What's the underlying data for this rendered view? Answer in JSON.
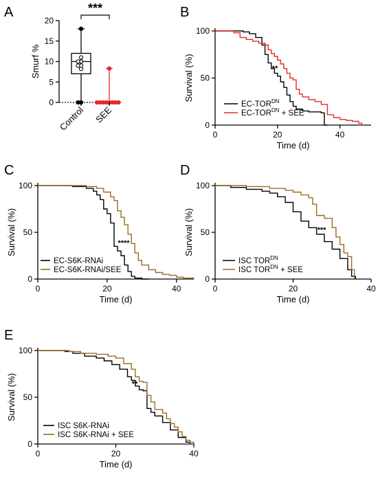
{
  "colors": {
    "black": "#000000",
    "red": "#e8282a",
    "brown": "#9b6a26"
  },
  "chart_data": [
    {
      "panel": "A",
      "type": "box",
      "ylabel": "Smurf %",
      "ylim": [
        0,
        20
      ],
      "yticks": [
        "0",
        "5",
        "10",
        "15",
        "20"
      ],
      "categories": [
        "Control",
        "SEE"
      ],
      "boxes": [
        {
          "name": "Control",
          "color": "#000000",
          "min": 0,
          "q1": 7,
          "median": 10,
          "q3": 12,
          "max": 18,
          "points": [
            0,
            0,
            8.2,
            9,
            9,
            10,
            10,
            11,
            18
          ]
        },
        {
          "name": "SEE",
          "color": "#e8282a",
          "min": 0,
          "q1": 0,
          "median": 0,
          "q3": 0,
          "max": 8.3,
          "points": [
            0,
            0,
            0,
            0,
            0,
            0,
            0,
            0,
            8.3
          ]
        }
      ],
      "significance": "***"
    },
    {
      "panel": "B",
      "type": "line",
      "xlabel": "Time (d)",
      "ylabel": "Survival (%)",
      "xlim": [
        0,
        50
      ],
      "ylim": [
        0,
        100
      ],
      "xticks": [
        "0",
        "20",
        "40"
      ],
      "yticks": [
        "0",
        "50",
        "100"
      ],
      "series": [
        {
          "name": "EC-TOR",
          "sup": "DN",
          "suffix": "",
          "color": "#000000",
          "points": [
            [
              0,
              100
            ],
            [
              6,
              100
            ],
            [
              9,
              99
            ],
            [
              11,
              97
            ],
            [
              13,
              93
            ],
            [
              15,
              85
            ],
            [
              16,
              75
            ],
            [
              17,
              66
            ],
            [
              18,
              60
            ],
            [
              19,
              55
            ],
            [
              20,
              52
            ],
            [
              21,
              46
            ],
            [
              22,
              40
            ],
            [
              23,
              32
            ],
            [
              24,
              25
            ],
            [
              25,
              20
            ],
            [
              26,
              17
            ],
            [
              28,
              15
            ],
            [
              30,
              14
            ],
            [
              34,
              13
            ],
            [
              35,
              0
            ],
            [
              36,
              0
            ]
          ]
        },
        {
          "name": "EC-TOR",
          "sup": "DN",
          "suffix": " + SEE",
          "color": "#e8282a",
          "points": [
            [
              0,
              100
            ],
            [
              6,
              98
            ],
            [
              8,
              93
            ],
            [
              10,
              91
            ],
            [
              12,
              89
            ],
            [
              14,
              87
            ],
            [
              16,
              85
            ],
            [
              17,
              80
            ],
            [
              18,
              76
            ],
            [
              19,
              73
            ],
            [
              20,
              69
            ],
            [
              21,
              65
            ],
            [
              22,
              60
            ],
            [
              23,
              55
            ],
            [
              24,
              50
            ],
            [
              25,
              48
            ],
            [
              26,
              38
            ],
            [
              27,
              33
            ],
            [
              28,
              30
            ],
            [
              30,
              27
            ],
            [
              32,
              25
            ],
            [
              34,
              22
            ],
            [
              36,
              11
            ],
            [
              38,
              8
            ],
            [
              40,
              6
            ],
            [
              42,
              5
            ],
            [
              44,
              4
            ],
            [
              46,
              2
            ],
            [
              47,
              0
            ]
          ]
        }
      ],
      "significance": "**"
    },
    {
      "panel": "C",
      "type": "line",
      "xlabel": "Time (d)",
      "ylabel": "Survival (%)",
      "xlim": [
        0,
        45
      ],
      "ylim": [
        0,
        100
      ],
      "xticks": [
        "0",
        "20",
        "40"
      ],
      "yticks": [
        "0",
        "50",
        "100"
      ],
      "series": [
        {
          "name": "EC-S6K-RNAi",
          "sup": "",
          "suffix": "",
          "color": "#000000",
          "points": [
            [
              0,
              100
            ],
            [
              10,
              99
            ],
            [
              14,
              97
            ],
            [
              16,
              94
            ],
            [
              17,
              90
            ],
            [
              18,
              85
            ],
            [
              19,
              75
            ],
            [
              20,
              70
            ],
            [
              21,
              60
            ],
            [
              22,
              35
            ],
            [
              23,
              30
            ],
            [
              24,
              25
            ],
            [
              25,
              15
            ],
            [
              26,
              8
            ],
            [
              27,
              3
            ],
            [
              28,
              1
            ],
            [
              30,
              0
            ],
            [
              32,
              0
            ]
          ]
        },
        {
          "name": "EC-S6K-RNAi/SEE",
          "sup": "",
          "suffix": "",
          "color": "#9b6a26",
          "points": [
            [
              0,
              100
            ],
            [
              14,
              99
            ],
            [
              17,
              97
            ],
            [
              19,
              93
            ],
            [
              21,
              88
            ],
            [
              22,
              84
            ],
            [
              23,
              73
            ],
            [
              24,
              66
            ],
            [
              25,
              58
            ],
            [
              26,
              48
            ],
            [
              27,
              38
            ],
            [
              28,
              28
            ],
            [
              29,
              20
            ],
            [
              30,
              15
            ],
            [
              32,
              10
            ],
            [
              34,
              7
            ],
            [
              36,
              5
            ],
            [
              38,
              4
            ],
            [
              40,
              2
            ],
            [
              42,
              1
            ],
            [
              45,
              0
            ]
          ]
        }
      ],
      "significance": "****"
    },
    {
      "panel": "D",
      "type": "line",
      "xlabel": "Time (d)",
      "ylabel": "Survival (%)",
      "xlim": [
        0,
        40
      ],
      "ylim": [
        0,
        100
      ],
      "xticks": [
        "0",
        "20",
        "40"
      ],
      "yticks": [
        "0",
        "50",
        "100"
      ],
      "series": [
        {
          "name": "ISC TOR",
          "sup": "DN",
          "suffix": "",
          "color": "#000000",
          "points": [
            [
              0,
              100
            ],
            [
              4,
              98
            ],
            [
              8,
              96
            ],
            [
              12,
              94
            ],
            [
              14,
              92
            ],
            [
              16,
              88
            ],
            [
              18,
              82
            ],
            [
              20,
              72
            ],
            [
              22,
              62
            ],
            [
              24,
              55
            ],
            [
              26,
              48
            ],
            [
              28,
              40
            ],
            [
              30,
              32
            ],
            [
              32,
              22
            ],
            [
              34,
              10
            ],
            [
              35,
              3
            ],
            [
              36,
              0
            ]
          ]
        },
        {
          "name": "ISC TOR",
          "sup": "DN",
          "suffix": " + SEE",
          "color": "#9b6a26",
          "points": [
            [
              0,
              100
            ],
            [
              8,
              99
            ],
            [
              14,
              97
            ],
            [
              18,
              95
            ],
            [
              20,
              93
            ],
            [
              22,
              90
            ],
            [
              24,
              87
            ],
            [
              25,
              80
            ],
            [
              26,
              68
            ],
            [
              28,
              65
            ],
            [
              30,
              55
            ],
            [
              31,
              45
            ],
            [
              32,
              37
            ],
            [
              33,
              28
            ],
            [
              34,
              24
            ],
            [
              35,
              10
            ],
            [
              35.7,
              0
            ]
          ]
        }
      ],
      "significance": "***"
    },
    {
      "panel": "E",
      "type": "line",
      "xlabel": "Time (d)",
      "ylabel": "Survival (%)",
      "xlim": [
        0,
        40
      ],
      "ylim": [
        0,
        100
      ],
      "xticks": [
        "0",
        "20",
        "40"
      ],
      "yticks": [
        "0",
        "50",
        "100"
      ],
      "series": [
        {
          "name": "ISC S6K-RNAi",
          "sup": "",
          "suffix": "",
          "color": "#000000",
          "points": [
            [
              0,
              100
            ],
            [
              7,
              99
            ],
            [
              9,
              97
            ],
            [
              12,
              94
            ],
            [
              15,
              92
            ],
            [
              17,
              89
            ],
            [
              19,
              85
            ],
            [
              21,
              80
            ],
            [
              23,
              72
            ],
            [
              24,
              68
            ],
            [
              25,
              62
            ],
            [
              26,
              58
            ],
            [
              27,
              57
            ],
            [
              28,
              38
            ],
            [
              29,
              34
            ],
            [
              30,
              30
            ],
            [
              32,
              23
            ],
            [
              34,
              15
            ],
            [
              36,
              7
            ],
            [
              38,
              2
            ],
            [
              39,
              0
            ]
          ]
        },
        {
          "name": "ISC S6K-RNAi + SEE",
          "sup": "",
          "suffix": "",
          "color": "#9b6a26",
          "points": [
            [
              0,
              100
            ],
            [
              8,
              99
            ],
            [
              11,
              97
            ],
            [
              15,
              96
            ],
            [
              18,
              94
            ],
            [
              20,
              92
            ],
            [
              22,
              86
            ],
            [
              24,
              80
            ],
            [
              25,
              72
            ],
            [
              26,
              67
            ],
            [
              27,
              66
            ],
            [
              28,
              52
            ],
            [
              29,
              45
            ],
            [
              30,
              37
            ],
            [
              32,
              33
            ],
            [
              33,
              27
            ],
            [
              34,
              22
            ],
            [
              35,
              18
            ],
            [
              36,
              13
            ],
            [
              37,
              8
            ],
            [
              38,
              4
            ],
            [
              39,
              2
            ],
            [
              40,
              0
            ]
          ]
        }
      ],
      "significance": "**"
    }
  ]
}
